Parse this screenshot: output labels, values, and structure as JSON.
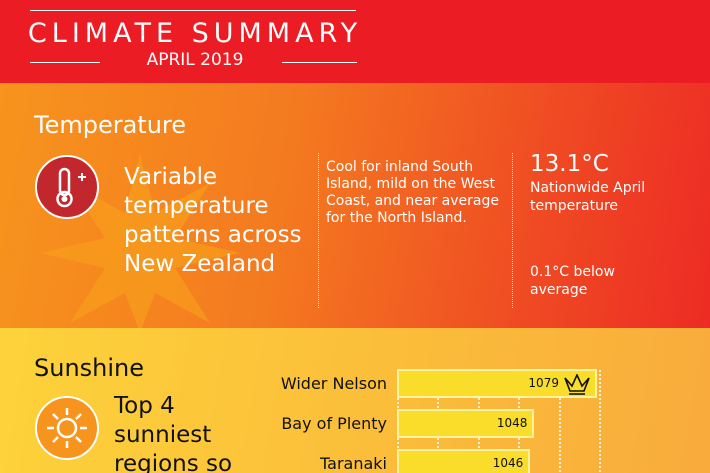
{
  "header": {
    "title": "CLIMATE SUMMARY",
    "subtitle": "APRIL 2019"
  },
  "temperature": {
    "section_title": "Temperature",
    "icon": "thermometer-plus-icon",
    "headline": "Variable temperature patterns across New Zealand",
    "description": "Cool for inland South Island, mild on the West Coast, and near average for the North Island.",
    "value": "13.1°C",
    "value_label": "Nationwide April temperature",
    "anomaly": "0.1°C below average"
  },
  "sunshine": {
    "section_title": "Sunshine",
    "icon": "sun-icon",
    "headline": "Top 4 sunniest regions so",
    "winner_icon": "crown-icon"
  },
  "chart_data": {
    "type": "bar",
    "orientation": "horizontal",
    "categories": [
      "Wider Nelson",
      "Bay of Plenty",
      "Taranaki"
    ],
    "values": [
      1079,
      1048,
      1046
    ],
    "data_labels": [
      "1079",
      "1048",
      "1046"
    ],
    "xlim": [
      980,
      1080
    ],
    "grid": true
  },
  "colors": {
    "header": "#ec1c24",
    "bar": "#f9dd2a",
    "icon_bg": "#c1272d"
  }
}
